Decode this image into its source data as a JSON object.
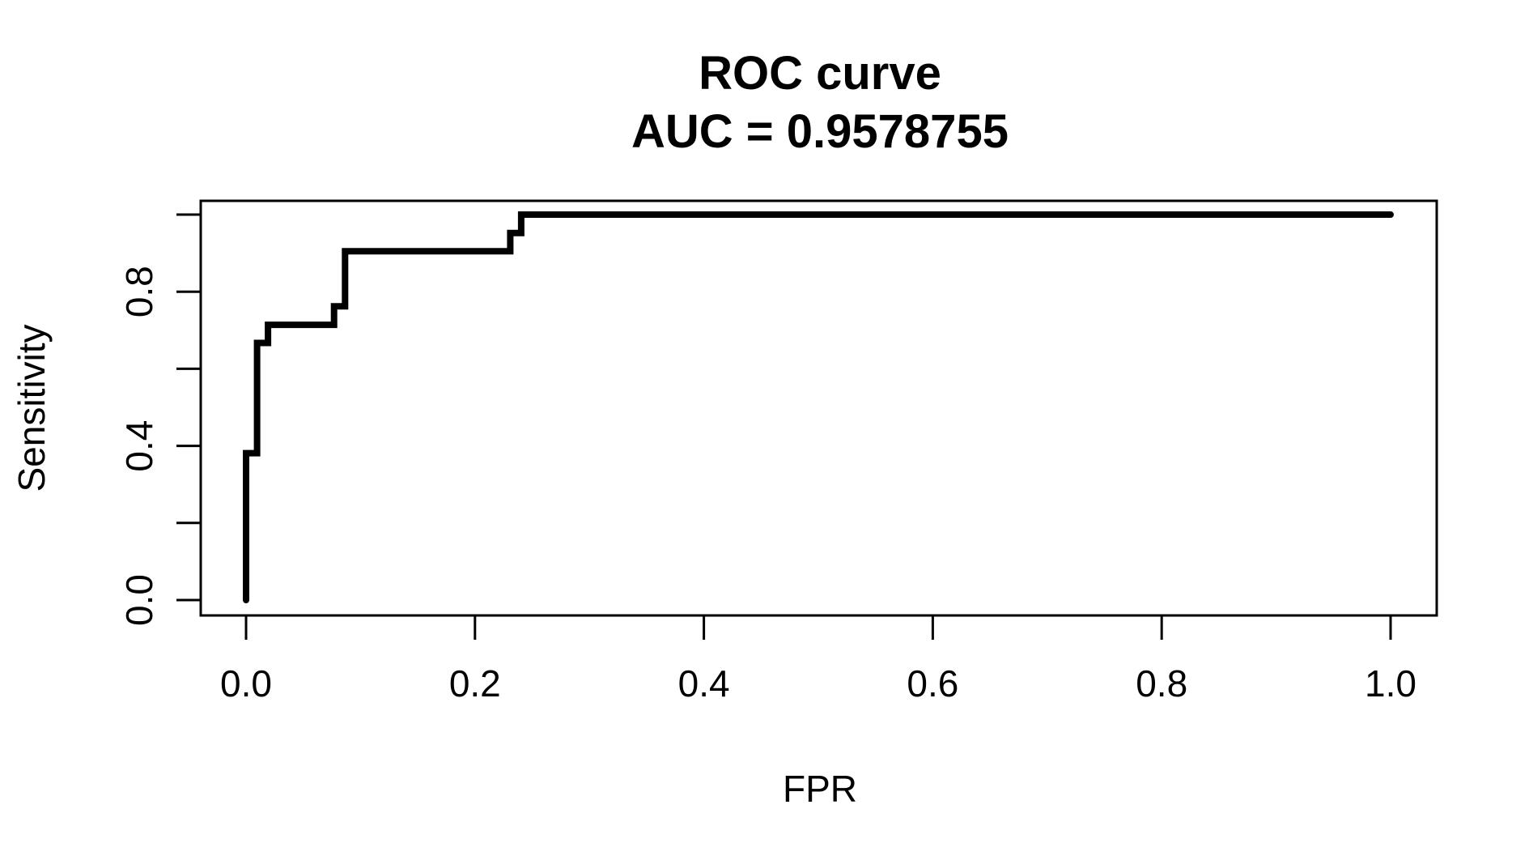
{
  "chart_data": {
    "type": "line",
    "title": "ROC curve",
    "subtitle": "AUC = 0.9578755",
    "xlabel": "FPR",
    "ylabel": "Sensitivity",
    "xlim": [
      0.0,
      1.0
    ],
    "ylim": [
      0.0,
      1.0
    ],
    "x_ticks": [
      0.0,
      0.2,
      0.4,
      0.6,
      0.8,
      1.0
    ],
    "x_tick_labels": [
      "0.0",
      "0.2",
      "0.4",
      "0.6",
      "0.8",
      "1.0"
    ],
    "y_ticks": [
      0.0,
      0.2,
      0.4,
      0.6,
      0.8,
      1.0
    ],
    "y_tick_labels": [
      "0.0",
      "",
      "0.4",
      "",
      "0.8",
      ""
    ],
    "grid": false,
    "legend": "none",
    "line_color": "#000000",
    "series": [
      {
        "x": [
          0.0,
          0.0,
          0.0096,
          0.0096,
          0.0192,
          0.0192,
          0.0769,
          0.0769,
          0.0865,
          0.0865,
          0.2308,
          0.2308,
          0.2404,
          0.2404,
          1.0
        ],
        "y": [
          0.0,
          0.381,
          0.381,
          0.667,
          0.667,
          0.714,
          0.714,
          0.762,
          0.762,
          0.905,
          0.905,
          0.952,
          0.952,
          1.0,
          1.0
        ]
      }
    ]
  }
}
